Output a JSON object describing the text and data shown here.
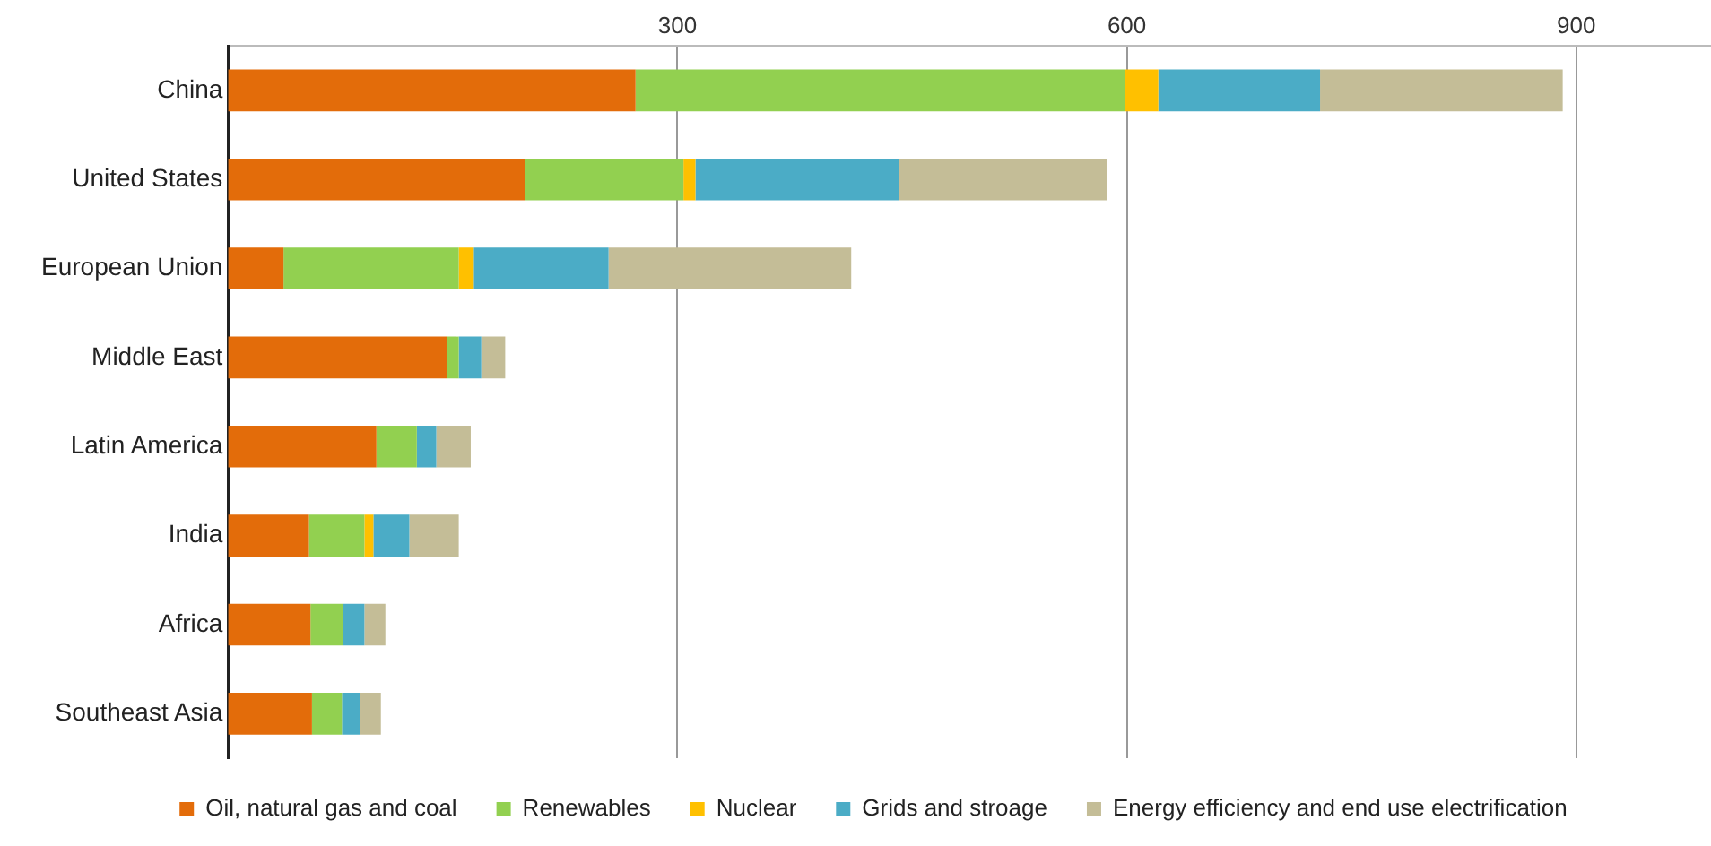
{
  "chart_data": {
    "type": "bar",
    "orientation": "horizontal",
    "stacked": true,
    "categories": [
      "China",
      "United States",
      "European Union",
      "Middle East",
      "Latin America",
      "India",
      "Africa",
      "Southeast Asia"
    ],
    "series": [
      {
        "name": "Oil, natural gas and coal",
        "color": "#e36c0a",
        "values": [
          272,
          198,
          37,
          146,
          99,
          54,
          55,
          56
        ]
      },
      {
        "name": "Renewables",
        "color": "#92d050",
        "values": [
          327,
          106,
          117,
          8,
          27,
          37,
          22,
          20
        ]
      },
      {
        "name": "Nuclear",
        "color": "#ffc000",
        "values": [
          22,
          8,
          10,
          0,
          0,
          6,
          0,
          0
        ]
      },
      {
        "name": "Grids and stroage",
        "color": "#4bacc6",
        "values": [
          108,
          136,
          90,
          15,
          13,
          24,
          14,
          12
        ]
      },
      {
        "name": "Energy efficiency and end use electrification",
        "color": "#c4bd97",
        "values": [
          162,
          139,
          162,
          16,
          23,
          33,
          14,
          14
        ]
      }
    ],
    "xlim": [
      0,
      990
    ],
    "xticks": [
      300,
      600,
      900
    ],
    "grid": "x",
    "legend": "bottom"
  }
}
